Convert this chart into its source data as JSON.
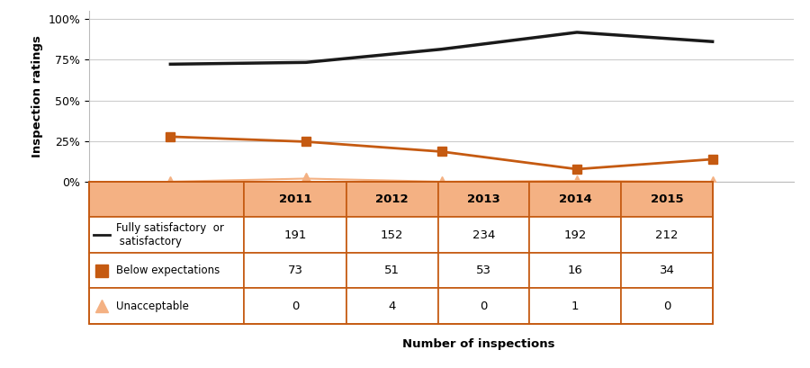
{
  "years": [
    2011,
    2012,
    2013,
    2014,
    2015
  ],
  "satisfactory_pct": [
    72.3,
    73.4,
    81.5,
    91.9,
    86.2
  ],
  "below_pct": [
    27.7,
    24.6,
    18.5,
    7.7,
    13.8
  ],
  "unacceptable_pct": [
    0.0,
    1.9,
    0.0,
    0.5,
    0.0
  ],
  "satisfactory_n": [
    191,
    152,
    234,
    192,
    212
  ],
  "below_n": [
    73,
    51,
    53,
    16,
    34
  ],
  "unacceptable_n": [
    0,
    4,
    0,
    1,
    0
  ],
  "color_black": "#1a1a1a",
  "color_orange": "#C55A11",
  "color_triangle": "#F4B183",
  "color_table_header_bg": "#F4B183",
  "color_border": "#C55A11",
  "ylabel": "Inspection ratings",
  "xlabel": "Number of inspections",
  "yticks": [
    0,
    25,
    50,
    75,
    100
  ],
  "ytick_labels": [
    "0%",
    "25%",
    "50%",
    "75%",
    "100%"
  ]
}
